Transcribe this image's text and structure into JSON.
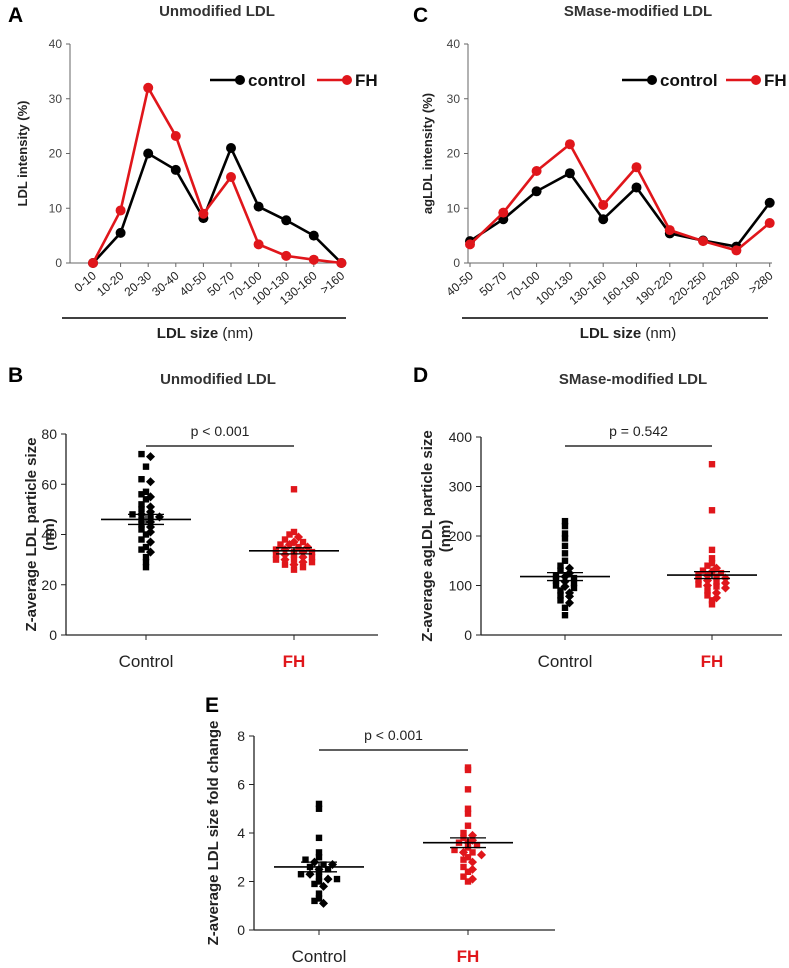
{
  "chart_data": [
    {
      "id": "A",
      "type": "line",
      "panel_label": "A",
      "title": "Unmodified LDL",
      "categories": [
        "0-10",
        "10-20",
        "20-30",
        "30-40",
        "40-50",
        "50-70",
        "70-100",
        "100-130",
        "130-160",
        ">160"
      ],
      "series": [
        {
          "name": "control",
          "color": "#000000",
          "values": [
            0,
            5.5,
            20,
            17,
            8.2,
            21,
            10.3,
            7.8,
            5,
            0
          ]
        },
        {
          "name": "FH",
          "color": "#e0161b",
          "values": [
            0,
            9.6,
            32,
            23.2,
            9,
            15.7,
            3.4,
            1.3,
            0.6,
            0
          ]
        }
      ],
      "ylabel": "LDL intensity (%)",
      "xlabel_bold": "LDL size",
      "xlabel_unit": "(nm)",
      "ylim": [
        0,
        40
      ],
      "yticks": [
        "0",
        "10",
        "20",
        "30",
        "40"
      ]
    },
    {
      "id": "C",
      "type": "line",
      "panel_label": "C",
      "title": "SMase-modified LDL",
      "categories": [
        "40-50",
        "50-70",
        "70-100",
        "100-130",
        "130-160",
        "160-190",
        "190-220",
        "220-250",
        "220-280",
        ">280"
      ],
      "series": [
        {
          "name": "control",
          "color": "#000000",
          "values": [
            4,
            8,
            13.1,
            16.4,
            8,
            13.8,
            5.4,
            4.1,
            3,
            11
          ]
        },
        {
          "name": "FH",
          "color": "#e0161b",
          "values": [
            3.4,
            9.2,
            16.8,
            21.7,
            10.6,
            17.5,
            6,
            4,
            2.3,
            7.3
          ]
        }
      ],
      "ylabel": "agLDL intensity (%)",
      "xlabel_bold": "LDL size",
      "xlabel_unit": "(nm)",
      "ylim": [
        0,
        40
      ],
      "yticks": [
        "0",
        "10",
        "20",
        "30",
        "40"
      ]
    },
    {
      "id": "B",
      "type": "scatter",
      "panel_label": "B",
      "title": "Unmodified LDL",
      "groups": [
        "Control",
        "FH"
      ],
      "ylabel": "Z-average LDL particle size (nm)",
      "ylabel_lines": [
        "Z-average LDL particle size",
        "(nm)"
      ],
      "ylim": [
        0,
        80
      ],
      "yticks": [
        "0",
        "20",
        "40",
        "60",
        "80"
      ],
      "pvalue": "p < 0.001",
      "means": [
        46,
        33.5
      ],
      "sems": [
        2,
        1.2
      ],
      "points": [
        [
          72,
          71,
          67,
          62,
          61,
          57,
          56,
          55,
          54,
          52,
          51,
          50,
          49,
          48,
          48,
          47,
          47,
          46,
          45,
          44,
          43,
          42,
          41,
          40,
          38,
          37,
          35,
          34,
          33,
          31,
          29,
          27
        ],
        [
          58,
          41,
          40,
          39,
          38,
          37,
          37,
          36,
          36,
          35,
          35,
          34,
          34,
          33,
          33,
          33,
          32,
          32,
          32,
          31,
          31,
          30,
          30,
          30,
          29,
          29,
          28,
          28,
          27,
          26
        ]
      ]
    },
    {
      "id": "D",
      "type": "scatter",
      "panel_label": "D",
      "title": "SMase-modified LDL",
      "groups": [
        "Control",
        "FH"
      ],
      "ylabel": "Z-average agLDL particle size (nm)",
      "ylabel_lines": [
        "Z-average agLDL particle size",
        "(nm)"
      ],
      "ylim": [
        0,
        400
      ],
      "yticks": [
        "0",
        "100",
        "200",
        "300",
        "400"
      ],
      "pvalue": "p = 0.542",
      "means": [
        118,
        121
      ],
      "sems": [
        8,
        7
      ],
      "points": [
        [
          230,
          220,
          205,
          195,
          180,
          165,
          150,
          140,
          135,
          130,
          125,
          120,
          118,
          115,
          110,
          108,
          105,
          100,
          98,
          95,
          90,
          85,
          80,
          78,
          70,
          65,
          55,
          40
        ],
        [
          345,
          252,
          172,
          155,
          145,
          140,
          135,
          130,
          128,
          125,
          122,
          120,
          118,
          115,
          112,
          110,
          108,
          105,
          102,
          100,
          98,
          95,
          90,
          85,
          80,
          75,
          70,
          62
        ]
      ]
    },
    {
      "id": "E",
      "type": "scatter",
      "panel_label": "E",
      "title": "",
      "groups": [
        "Control",
        "FH"
      ],
      "ylabel": "Z-average LDL size fold change",
      "ylabel_lines": [
        "Z-average LDL size fold change"
      ],
      "ylim": [
        0,
        8
      ],
      "yticks": [
        "0",
        "2",
        "4",
        "6",
        "8"
      ],
      "pvalue": "p < 0.001",
      "means": [
        2.6,
        3.6
      ],
      "sems": [
        0.2,
        0.2
      ],
      "points": [
        [
          5.2,
          5.0,
          3.8,
          3.2,
          3.0,
          2.9,
          2.8,
          2.7,
          2.7,
          2.6,
          2.5,
          2.5,
          2.4,
          2.3,
          2.3,
          2.2,
          2.1,
          2.1,
          2.0,
          1.9,
          1.8,
          1.5,
          1.3,
          1.2,
          1.1
        ],
        [
          6.7,
          6.6,
          5.8,
          5.0,
          4.8,
          4.3,
          4.0,
          3.9,
          3.8,
          3.7,
          3.6,
          3.6,
          3.5,
          3.4,
          3.3,
          3.2,
          3.2,
          3.1,
          3.0,
          2.9,
          2.8,
          2.6,
          2.5,
          2.4,
          2.2,
          2.1,
          2.0
        ]
      ]
    }
  ]
}
